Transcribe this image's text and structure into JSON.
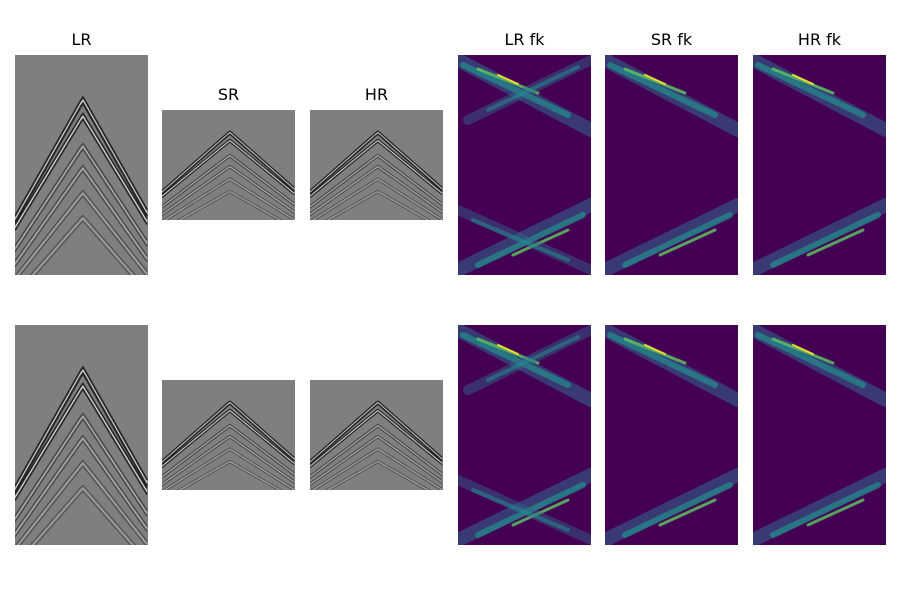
{
  "figure": {
    "rows": [
      {
        "panels": {
          "lr": {
            "title": "LR",
            "kind": "seismic"
          },
          "sr": {
            "title": "SR",
            "kind": "seismic"
          },
          "hr": {
            "title": "HR",
            "kind": "seismic"
          },
          "lr_fk": {
            "title": "LR fk",
            "kind": "fk-spectrum"
          },
          "sr_fk": {
            "title": "SR fk",
            "kind": "fk-spectrum"
          },
          "hr_fk": {
            "title": "HR fk",
            "kind": "fk-spectrum"
          }
        }
      },
      {
        "panels": {
          "lr": {
            "kind": "seismic"
          },
          "sr": {
            "kind": "seismic"
          },
          "hr": {
            "kind": "seismic"
          },
          "lr_fk": {
            "kind": "fk-spectrum"
          },
          "sr_fk": {
            "kind": "fk-spectrum"
          },
          "hr_fk": {
            "kind": "fk-spectrum"
          }
        }
      }
    ]
  },
  "colors": {
    "seismic_background": "#7f7f7f",
    "seismic_dark": "#1a1a1a",
    "seismic_light": "#e8e8e8",
    "fk_background": "#440154",
    "fk_mid": "#31688e",
    "fk_teal": "#21918c",
    "fk_green": "#5ec962",
    "fk_yellow": "#fde725"
  }
}
